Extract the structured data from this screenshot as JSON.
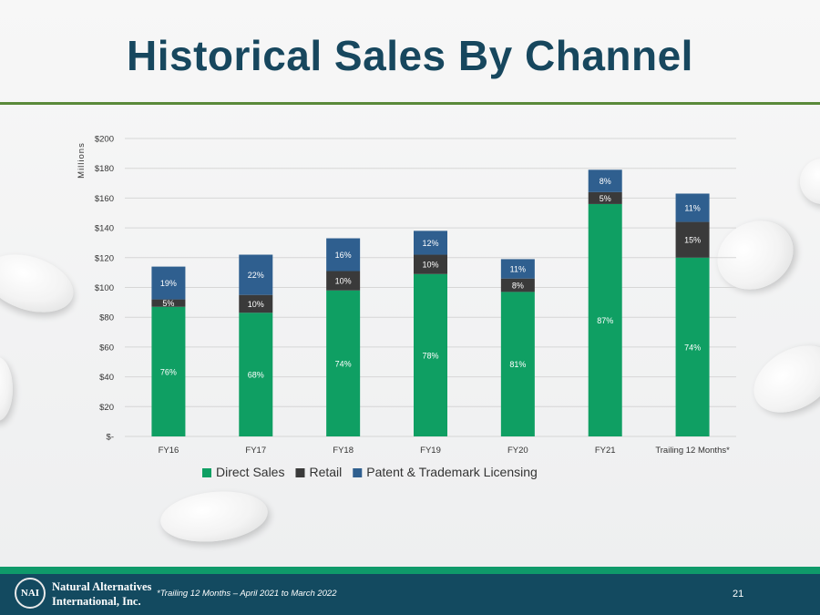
{
  "slide": {
    "title": "Historical Sales By Channel",
    "footnote": "*Trailing 12 Months – April 2021 to March 2022",
    "page_number": "21",
    "company_line1": "Natural Alternatives",
    "company_line2": "International, Inc.",
    "logo_text": "NAI"
  },
  "colors": {
    "direct": "#0f9f63",
    "retail": "#3a3a3a",
    "licensing": "#2f5f8f",
    "title": "#17475e"
  },
  "chart_data": {
    "type": "bar",
    "stacked": true,
    "ylabel": "Millions",
    "ylim": [
      0,
      200
    ],
    "yticks": [
      0,
      20,
      40,
      60,
      80,
      100,
      120,
      140,
      160,
      180,
      200
    ],
    "ytick_labels": [
      "$-",
      "$20",
      "$40",
      "$60",
      "$80",
      "$100",
      "$120",
      "$140",
      "$160",
      "$180",
      "$200"
    ],
    "grid": true,
    "legend": "bottom",
    "categories": [
      "FY16",
      "FY17",
      "FY18",
      "FY19",
      "FY20",
      "FY21",
      "Trailing 12 Months*"
    ],
    "series": [
      {
        "name": "Direct Sales",
        "color_key": "direct",
        "values": [
          87,
          83,
          98,
          109,
          97,
          156,
          120
        ],
        "labels": [
          "76%",
          "68%",
          "74%",
          "78%",
          "81%",
          "87%",
          "74%"
        ]
      },
      {
        "name": "Retail",
        "color_key": "retail",
        "values": [
          5,
          12,
          13,
          13,
          9,
          8,
          24
        ],
        "labels": [
          "5%",
          "10%",
          "10%",
          "10%",
          "8%",
          "5%",
          "15%"
        ]
      },
      {
        "name": "Patent & Trademark Licensing",
        "color_key": "licensing",
        "values": [
          22,
          27,
          22,
          16,
          13,
          15,
          19
        ],
        "labels": [
          "19%",
          "22%",
          "16%",
          "12%",
          "11%",
          "8%",
          "11%"
        ]
      }
    ]
  }
}
